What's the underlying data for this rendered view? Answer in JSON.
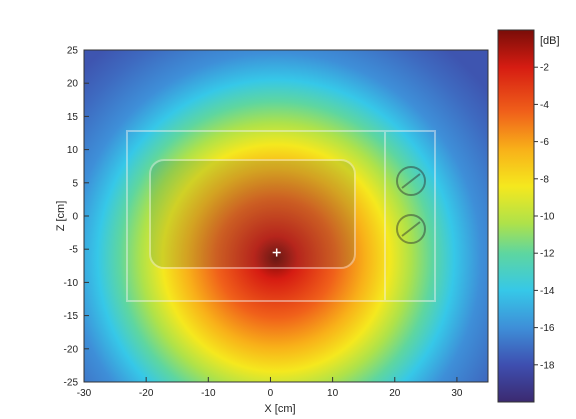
{
  "chart_data": {
    "type": "heatmap",
    "title": "",
    "xlabel": "X [cm]",
    "ylabel": "Z [cm]",
    "xlim": [
      -30,
      35
    ],
    "ylim": [
      -25,
      25
    ],
    "x_ticks": [
      "-30",
      "-20",
      "-10",
      "0",
      "10",
      "20",
      "30"
    ],
    "y_ticks": [
      "-25",
      "-20",
      "-15",
      "-10",
      "-5",
      "0",
      "5",
      "10",
      "15",
      "20",
      "25"
    ],
    "colorbar": {
      "label": "[dB]",
      "range": [
        -20,
        0
      ],
      "ticks": [
        "-2",
        "-4",
        "-6",
        "-8",
        "-10",
        "-12",
        "-14",
        "-16",
        "-18"
      ]
    },
    "source_point": {
      "x": 1,
      "z": -5.5,
      "level_db": 0
    },
    "background_object": "microwave-oven",
    "colormap": [
      "#3b2a70",
      "#3e4fb0",
      "#3e8fd8",
      "#36c8e8",
      "#5ed6a0",
      "#aee24a",
      "#f5e81e",
      "#f8b019",
      "#f0601a",
      "#d61c12",
      "#7a0d08"
    ]
  }
}
